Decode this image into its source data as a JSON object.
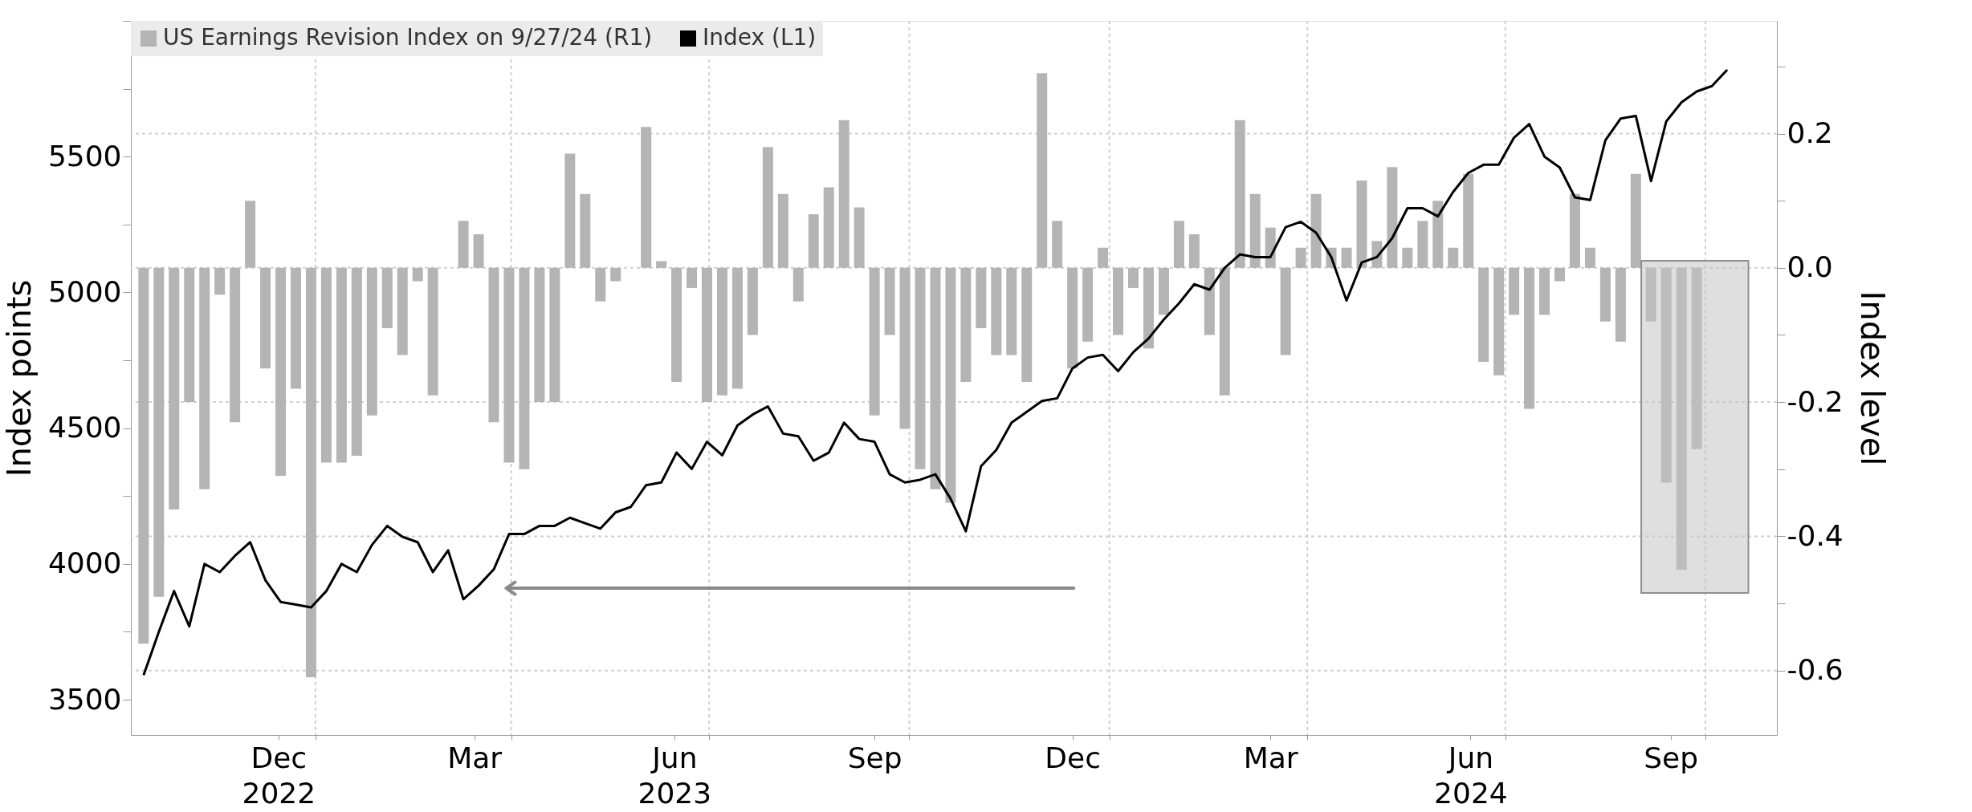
{
  "chart_data": {
    "type": "bar",
    "ylabel": "Index points",
    "y2label": "Index level",
    "xlim": [
      "2022-10-10",
      "2024-11-01"
    ],
    "xticks": [
      {
        "value": "2022-12-15",
        "label": "Dec\n2022"
      },
      {
        "value": "2023-03-15",
        "label": "Mar"
      },
      {
        "value": "2023-06-15",
        "label": "Jun\n2023"
      },
      {
        "value": "2023-09-15",
        "label": "Sep"
      },
      {
        "value": "2023-12-15",
        "label": "Dec"
      },
      {
        "value": "2024-03-15",
        "label": "Mar"
      },
      {
        "value": "2024-06-15",
        "label": "Jun\n2024"
      },
      {
        "value": "2024-09-15",
        "label": "Sep"
      },
      {
        "value": "2023-01-01",
        "label": null
      },
      {
        "value": "2023-04-01",
        "label": null
      },
      {
        "value": "2023-07-01",
        "label": null
      },
      {
        "value": "2023-10-01",
        "label": null
      },
      {
        "value": "2024-01-01",
        "label": null
      },
      {
        "value": "2024-04-01",
        "label": null
      },
      {
        "value": "2024-07-01",
        "label": null
      },
      {
        "value": "2024-10-01",
        "label": null
      }
    ],
    "ylim": [
      3370,
      6000
    ],
    "yticks": [
      3500,
      4000,
      4500,
      5000,
      5500,
      {
        "value": 3750,
        "label": null
      },
      {
        "value": 4250,
        "label": null
      },
      {
        "value": 4750,
        "label": null
      },
      {
        "value": 5250,
        "label": null
      },
      {
        "value": 5750,
        "label": null
      },
      {
        "value": 6000,
        "label": null
      }
    ],
    "y2lim": [
      -0.696,
      0.368
    ],
    "y2ticks": [
      -0.6,
      -0.4,
      -0.2,
      {
        "value": 0,
        "label": "0.0"
      },
      0.2,
      {
        "value": -0.5,
        "label": null
      },
      {
        "value": -0.3,
        "label": null
      },
      {
        "value": -0.1,
        "label": null
      },
      {
        "value": 0.1,
        "label": null
      },
      {
        "value": 0.3,
        "label": null
      }
    ],
    "grid": true,
    "legend": "top left",
    "series": [
      {
        "name": "US Earnings Revision Index on 9/27/24 (R1)",
        "axis": "y2",
        "color": "#b4b4b4",
        "x": [
          "2022-10-14",
          "2022-10-21",
          "2022-10-28",
          "2022-11-04",
          "2022-11-11",
          "2022-11-18",
          "2022-11-25",
          "2022-12-02",
          "2022-12-09",
          "2022-12-16",
          "2022-12-23",
          "2022-12-30",
          "2023-01-06",
          "2023-01-13",
          "2023-01-20",
          "2023-01-27",
          "2023-02-03",
          "2023-02-10",
          "2023-02-17",
          "2023-02-24",
          "2023-03-03",
          "2023-03-10",
          "2023-03-17",
          "2023-03-24",
          "2023-03-31",
          "2023-04-07",
          "2023-04-14",
          "2023-04-21",
          "2023-04-28",
          "2023-05-05",
          "2023-05-12",
          "2023-05-19",
          "2023-05-26",
          "2023-06-02",
          "2023-06-09",
          "2023-06-16",
          "2023-06-23",
          "2023-06-30",
          "2023-07-07",
          "2023-07-14",
          "2023-07-21",
          "2023-07-28",
          "2023-08-04",
          "2023-08-11",
          "2023-08-18",
          "2023-08-25",
          "2023-09-01",
          "2023-09-08",
          "2023-09-15",
          "2023-09-22",
          "2023-09-29",
          "2023-10-06",
          "2023-10-13",
          "2023-10-20",
          "2023-10-27",
          "2023-11-03",
          "2023-11-10",
          "2023-11-17",
          "2023-11-24",
          "2023-12-01",
          "2023-12-08",
          "2023-12-15",
          "2023-12-22",
          "2023-12-29",
          "2024-01-05",
          "2024-01-12",
          "2024-01-19",
          "2024-01-26",
          "2024-02-02",
          "2024-02-09",
          "2024-02-16",
          "2024-02-23",
          "2024-03-01",
          "2024-03-08",
          "2024-03-15",
          "2024-03-22",
          "2024-03-29",
          "2024-04-05",
          "2024-04-12",
          "2024-04-19",
          "2024-04-26",
          "2024-05-03",
          "2024-05-10",
          "2024-05-17",
          "2024-05-24",
          "2024-05-31",
          "2024-06-07",
          "2024-06-14",
          "2024-06-21",
          "2024-06-28",
          "2024-07-05",
          "2024-07-12",
          "2024-07-19",
          "2024-07-26",
          "2024-08-02",
          "2024-08-09",
          "2024-08-16",
          "2024-08-23",
          "2024-08-30",
          "2024-09-06",
          "2024-09-13",
          "2024-09-20",
          "2024-09-27"
        ],
        "values": [
          -0.56,
          -0.49,
          -0.36,
          -0.2,
          -0.33,
          -0.04,
          -0.23,
          0.1,
          -0.15,
          -0.31,
          -0.18,
          -0.61,
          -0.29,
          -0.29,
          -0.28,
          -0.22,
          -0.09,
          -0.13,
          -0.02,
          -0.19,
          0.0,
          0.07,
          0.05,
          -0.23,
          -0.29,
          -0.3,
          -0.2,
          -0.2,
          0.17,
          0.11,
          -0.05,
          -0.02,
          0.0,
          0.21,
          0.01,
          -0.17,
          -0.03,
          -0.2,
          -0.19,
          -0.18,
          -0.1,
          0.18,
          0.11,
          -0.05,
          0.08,
          0.12,
          0.22,
          0.09,
          -0.22,
          -0.1,
          -0.24,
          -0.3,
          -0.33,
          -0.35,
          -0.17,
          -0.09,
          -0.13,
          -0.13,
          -0.17,
          0.29,
          0.07,
          -0.15,
          -0.11,
          0.03,
          -0.1,
          -0.03,
          -0.12,
          -0.07,
          0.07,
          0.05,
          -0.1,
          -0.19,
          0.22,
          0.11,
          0.06,
          -0.13,
          0.03,
          0.11,
          0.03,
          0.03,
          0.13,
          0.04,
          0.15,
          0.03,
          0.07,
          0.1,
          0.03,
          0.14,
          -0.14,
          -0.16,
          -0.07,
          -0.21,
          -0.07,
          -0.02,
          0.11,
          0.03,
          -0.08,
          -0.11,
          0.14,
          -0.08,
          -0.32,
          -0.45,
          -0.27
        ]
      },
      {
        "name": "Index (L1)",
        "type": "line",
        "axis": "y",
        "color": "#000000",
        "x": [
          "2022-10-14",
          "2022-10-21",
          "2022-10-28",
          "2022-11-04",
          "2022-11-11",
          "2022-11-18",
          "2022-11-25",
          "2022-12-02",
          "2022-12-09",
          "2022-12-16",
          "2022-12-23",
          "2022-12-30",
          "2023-01-06",
          "2023-01-13",
          "2023-01-20",
          "2023-01-27",
          "2023-02-03",
          "2023-02-10",
          "2023-02-17",
          "2023-02-24",
          "2023-03-03",
          "2023-03-10",
          "2023-03-17",
          "2023-03-24",
          "2023-03-31",
          "2023-04-07",
          "2023-04-14",
          "2023-04-21",
          "2023-04-28",
          "2023-05-05",
          "2023-05-12",
          "2023-05-19",
          "2023-05-26",
          "2023-06-02",
          "2023-06-09",
          "2023-06-16",
          "2023-06-23",
          "2023-06-30",
          "2023-07-07",
          "2023-07-14",
          "2023-07-21",
          "2023-07-28",
          "2023-08-04",
          "2023-08-11",
          "2023-08-18",
          "2023-08-25",
          "2023-09-01",
          "2023-09-08",
          "2023-09-15",
          "2023-09-22",
          "2023-09-29",
          "2023-10-06",
          "2023-10-13",
          "2023-10-20",
          "2023-10-27",
          "2023-11-03",
          "2023-11-10",
          "2023-11-17",
          "2023-11-24",
          "2023-12-01",
          "2023-12-08",
          "2023-12-15",
          "2023-12-22",
          "2023-12-29",
          "2024-01-05",
          "2024-01-12",
          "2024-01-19",
          "2024-01-26",
          "2024-02-02",
          "2024-02-09",
          "2024-02-16",
          "2024-02-23",
          "2024-03-01",
          "2024-03-08",
          "2024-03-15",
          "2024-03-22",
          "2024-03-29",
          "2024-04-05",
          "2024-04-12",
          "2024-04-19",
          "2024-04-26",
          "2024-05-03",
          "2024-05-10",
          "2024-05-17",
          "2024-05-24",
          "2024-05-31",
          "2024-06-07",
          "2024-06-14",
          "2024-06-21",
          "2024-06-28",
          "2024-07-05",
          "2024-07-12",
          "2024-07-19",
          "2024-07-26",
          "2024-08-02",
          "2024-08-09",
          "2024-08-16",
          "2024-08-23",
          "2024-08-30",
          "2024-09-06",
          "2024-09-13",
          "2024-09-20",
          "2024-09-27",
          "2024-10-04",
          "2024-10-11"
        ],
        "values": [
          3590,
          3750,
          3900,
          3770,
          4000,
          3970,
          4030,
          4080,
          3940,
          3860,
          3850,
          3840,
          3900,
          4000,
          3970,
          4070,
          4140,
          4100,
          4080,
          3970,
          4050,
          3870,
          3920,
          3980,
          4110,
          4110,
          4140,
          4140,
          4170,
          4150,
          4130,
          4190,
          4210,
          4290,
          4300,
          4410,
          4350,
          4450,
          4400,
          4510,
          4550,
          4580,
          4480,
          4470,
          4380,
          4410,
          4520,
          4460,
          4450,
          4330,
          4300,
          4310,
          4330,
          4240,
          4120,
          4360,
          4420,
          4520,
          4560,
          4600,
          4610,
          4720,
          4760,
          4770,
          4710,
          4780,
          4830,
          4900,
          4960,
          5030,
          5010,
          5090,
          5140,
          5130,
          5130,
          5240,
          5260,
          5220,
          5130,
          4970,
          5110,
          5130,
          5200,
          5310,
          5310,
          5280,
          5370,
          5440,
          5470,
          5470,
          5570,
          5620,
          5500,
          5460,
          5350,
          5340,
          5560,
          5640,
          5650,
          5410,
          5630,
          5700,
          5740,
          5760,
          5820
        ]
      }
    ]
  }
}
